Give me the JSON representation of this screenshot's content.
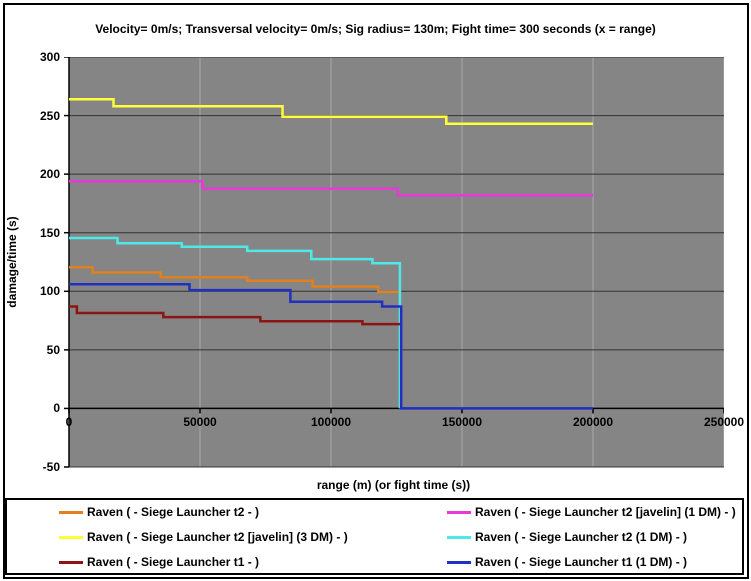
{
  "chart_data": {
    "type": "line",
    "subtype": "step",
    "title": "Velocity= 0m/s; Transversal velocity= 0m/s; Sig radius= 130m; Fight time= 300 seconds (x = range)",
    "xlabel": "range (m) (or fight time (s))",
    "ylabel": "damage/time (s)",
    "xlim": [
      0,
      250000
    ],
    "ylim": [
      -50,
      300
    ],
    "x_ticks": [
      0,
      50000,
      100000,
      150000,
      200000,
      250000
    ],
    "y_ticks": [
      300,
      250,
      200,
      150,
      100,
      50,
      0,
      -50
    ],
    "plot_bg_color": "#858585",
    "h_gridline_color": "#333333",
    "v_gridline_color": "#a9a9a9",
    "axis_color": "#000000",
    "grid": "both",
    "legend_position": "bottom",
    "legend_columns": 2,
    "series": [
      {
        "name": "Raven ( - Siege Launcher t2 - )",
        "color": "#e0801e",
        "points": [
          [
            0,
            120.5
          ],
          [
            9000,
            120.5
          ],
          [
            9000,
            116
          ],
          [
            35000,
            116
          ],
          [
            35000,
            112
          ],
          [
            68000,
            112
          ],
          [
            68000,
            109
          ],
          [
            93000,
            109
          ],
          [
            93000,
            104
          ],
          [
            118000,
            104
          ],
          [
            118000,
            99.5
          ],
          [
            126300,
            99.5
          ]
        ]
      },
      {
        "name": "Raven ( - Siege Launcher t2 [javelin] (1 DM) - )",
        "color": "#e838d8",
        "points": [
          [
            0,
            194
          ],
          [
            51000,
            194
          ],
          [
            51000,
            187.5
          ],
          [
            125500,
            187.5
          ],
          [
            125500,
            182
          ],
          [
            200000,
            182
          ]
        ]
      },
      {
        "name": "Raven ( - Siege Launcher t2 [javelin] (3 DM) - )",
        "color": "#ffff3c",
        "points": [
          [
            0,
            264
          ],
          [
            17000,
            264
          ],
          [
            17000,
            258
          ],
          [
            81500,
            258
          ],
          [
            81500,
            249
          ],
          [
            144000,
            249
          ],
          [
            144000,
            243
          ],
          [
            200000,
            243
          ]
        ]
      },
      {
        "name": "Raven ( - Siege Launcher t2 (1 DM) - )",
        "color": "#4fe8e8",
        "points": [
          [
            0,
            145.5
          ],
          [
            18500,
            145.5
          ],
          [
            18500,
            141
          ],
          [
            43000,
            141
          ],
          [
            43000,
            138
          ],
          [
            68000,
            138
          ],
          [
            68000,
            134.5
          ],
          [
            92500,
            134.5
          ],
          [
            92500,
            127.5
          ],
          [
            115800,
            127.5
          ],
          [
            115800,
            124
          ],
          [
            126300,
            124
          ],
          [
            126300,
            0
          ]
        ]
      },
      {
        "name": "Raven ( - Siege Launcher t1 - )",
        "color": "#8b1513",
        "points": [
          [
            0,
            87
          ],
          [
            3000,
            87
          ],
          [
            3000,
            81.5
          ],
          [
            36000,
            81.5
          ],
          [
            36000,
            78
          ],
          [
            73000,
            78
          ],
          [
            73000,
            74.5
          ],
          [
            112000,
            74.5
          ],
          [
            112000,
            72
          ],
          [
            127200,
            72
          ]
        ]
      },
      {
        "name": "Raven ( - Siege Launcher t1 (1 DM) - )",
        "color": "#2030c0",
        "points": [
          [
            0,
            106
          ],
          [
            46000,
            106
          ],
          [
            46000,
            101
          ],
          [
            84500,
            101
          ],
          [
            84500,
            91
          ],
          [
            119500,
            91
          ],
          [
            119500,
            87
          ],
          [
            126800,
            87
          ],
          [
            126800,
            0
          ],
          [
            200000,
            0
          ]
        ]
      }
    ]
  }
}
